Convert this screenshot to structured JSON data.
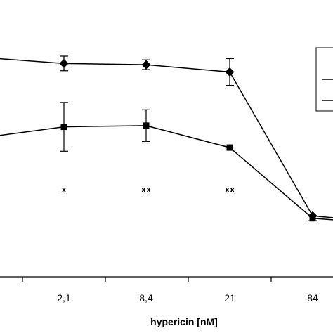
{
  "chart_data": {
    "type": "line",
    "x_categories": [
      "2,1",
      "8,4",
      "21",
      "84"
    ],
    "xlabel": "hypericin [nM]",
    "ylabel": "",
    "title": "",
    "ylim": [
      0,
      100
    ],
    "grid": false,
    "legend": "top-right",
    "series": [
      {
        "marker": "diamond",
        "points": [
          {
            "x": "",
            "y": 90.0
          },
          {
            "x": "2,1",
            "y": 87.5,
            "err": 3.0
          },
          {
            "x": "8,4",
            "y": 87.0,
            "err": 2.0
          },
          {
            "x": "21",
            "y": 84.0,
            "err": 5.5
          },
          {
            "x": "84",
            "y": 25.0
          },
          {
            "x": "",
            "y": 22.0
          }
        ]
      },
      {
        "marker": "square",
        "points": [
          {
            "x": "",
            "y": 57.0
          },
          {
            "x": "2,1",
            "y": 61.5,
            "err": 10.0
          },
          {
            "x": "8,4",
            "y": 62.0,
            "err": 6.5
          },
          {
            "x": "21",
            "y": 53.0
          },
          {
            "x": "84",
            "y": 24.0,
            "err": 1.0
          },
          {
            "x": "",
            "y": 21.5
          }
        ]
      }
    ],
    "annotations": [
      {
        "text": "x",
        "x": "2,1"
      },
      {
        "text": "xx",
        "x": "8,4"
      },
      {
        "text": "xx",
        "x": "21"
      }
    ],
    "colors": {
      "line": "#000000",
      "background": "#ffffff"
    }
  }
}
